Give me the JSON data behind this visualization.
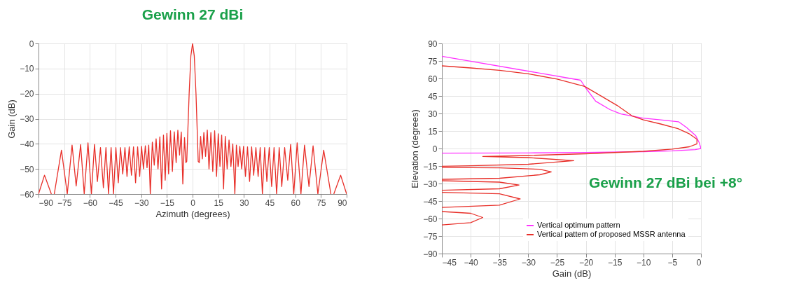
{
  "chart_data": [
    {
      "type": "line",
      "xlabel": "Azimuth (degrees)",
      "ylabel": "Gain (dB)",
      "xlim": [
        -90,
        90
      ],
      "ylim": [
        -60,
        0
      ],
      "xticks": [
        -90,
        -75,
        -60,
        -45,
        -30,
        -15,
        0,
        15,
        30,
        45,
        60,
        75,
        90
      ],
      "yticks": [
        -60,
        -50,
        -40,
        -30,
        -20,
        -10,
        0
      ],
      "grid": true,
      "legend": false,
      "color": "#e8302a",
      "annotations": [
        "Gewinn 27 dBi"
      ],
      "x": [
        -90,
        -86.5,
        -82.5,
        -81.6,
        -80.8,
        -76.6,
        -73.2,
        -70.4,
        -68.0,
        -65.4,
        -63.3,
        -61.1,
        -59.1,
        -57.3,
        -55.6,
        -53.8,
        -52.1,
        -50.6,
        -49.1,
        -47.6,
        -46.2,
        -44.8,
        -43.4,
        -42.1,
        -40.8,
        -39.5,
        -38.3,
        -37.0,
        -35.7,
        -34.5,
        -33.3,
        -32.1,
        -30.9,
        -29.8,
        -28.7,
        -27.6,
        -26.6,
        -25.6,
        -24.7,
        -23.5,
        -22.4,
        -21.3,
        -20.2,
        -19.1,
        -18.1,
        -17.0,
        -16.0,
        -15.0,
        -14.0,
        -12.9,
        -11.8,
        -10.7,
        -9.6,
        -8.6,
        -7.6,
        -6.6,
        -5.7,
        -4.7,
        -3.9,
        -3.4,
        -2,
        -1,
        0,
        1,
        2,
        3.3,
        3.9,
        4.7,
        5.7,
        6.6,
        7.6,
        8.6,
        9.6,
        10.7,
        11.8,
        12.9,
        14.0,
        15.0,
        16.0,
        17.0,
        18.1,
        19.1,
        20.2,
        21.3,
        22.4,
        23.5,
        24.7,
        25.6,
        26.6,
        27.6,
        28.7,
        29.8,
        30.9,
        32.1,
        33.3,
        34.5,
        35.7,
        37.0,
        38.3,
        39.5,
        40.8,
        42.1,
        43.4,
        44.8,
        46.2,
        47.6,
        49.1,
        50.6,
        52.1,
        53.8,
        55.6,
        57.3,
        59.1,
        61.1,
        63.3,
        65.4,
        68.0,
        70.4,
        73.2,
        76.6,
        80.8,
        81.6,
        82.5,
        86.5,
        90
      ],
      "values": [
        -60,
        -52.5,
        -60,
        null,
        -60,
        -42.5,
        -60,
        -40.5,
        -56.8,
        -40.3,
        -60,
        -39.6,
        -60,
        -40.2,
        -55,
        -41.5,
        -57.5,
        -41.5,
        -60,
        -41.5,
        -60,
        -41.5,
        -55.5,
        -41.5,
        -52,
        -41.5,
        -53,
        -41.2,
        -52.5,
        -41.2,
        -55.5,
        -41.2,
        -53,
        -41,
        -50,
        -40.8,
        -49.5,
        -40.5,
        -60,
        -39.3,
        -48.5,
        -38,
        -50,
        -37.2,
        -58,
        -36.5,
        -54.5,
        -35.8,
        -52,
        -34.8,
        -51,
        -35.2,
        -47.5,
        -34.6,
        -44.5,
        -35.3,
        -56,
        -37.5,
        -47.5,
        -47,
        -20,
        -5,
        0,
        -5,
        -20,
        -47,
        -47.5,
        -37,
        -46,
        -35.5,
        -45,
        -34.5,
        -50,
        -35.5,
        -51,
        -34.8,
        -53,
        -36,
        -49,
        -36.5,
        -58,
        -37,
        -50,
        -38.5,
        -49,
        -40,
        -60,
        -40.5,
        -49,
        -41,
        -50,
        -41,
        -53,
        -41.2,
        -55,
        -41.2,
        -52.5,
        -41.5,
        -53,
        -41.5,
        -60,
        -41.5,
        -55,
        -41.5,
        -57,
        -41.5,
        -60,
        -41.5,
        -57,
        -41.5,
        -54.5,
        -40.2,
        -60,
        -39.6,
        -60,
        -40.5,
        -57,
        -40.8,
        -60,
        -42.5,
        -60,
        null,
        -60,
        -52.5,
        -60
      ]
    },
    {
      "type": "line",
      "xlabel": "Gain (dB)",
      "ylabel": "Elevation (degrees)",
      "xlim": [
        -45,
        0
      ],
      "ylim": [
        -90,
        90
      ],
      "xticks": [
        -45,
        -40,
        -35,
        -30,
        -25,
        -20,
        -15,
        -10,
        -5,
        0
      ],
      "yticks": [
        -90,
        -75,
        -60,
        -45,
        -30,
        -15,
        0,
        15,
        30,
        45,
        60,
        75,
        90
      ],
      "grid": true,
      "legend": "bottom right",
      "annotations": [
        "Gewinn 27 dBi bei +8°"
      ],
      "series": [
        {
          "name": "Vertical optimum pattern",
          "color": "#ff33ff",
          "x": [
            -45,
            -20.9,
            -20.1,
            -18.3,
            -15.8,
            -13.9,
            -10.1,
            -7,
            -3.9,
            -2.5,
            -0.9,
            -0.3,
            0,
            -1,
            -5,
            -10,
            -20,
            -30,
            -45
          ],
          "values": [
            79,
            58.5,
            52.5,
            40.6,
            33.3,
            29.6,
            26,
            24.5,
            22.9,
            18,
            10.9,
            5,
            0,
            -1,
            -2,
            -2.7,
            -3.4,
            -3.8,
            -4
          ]
        },
        {
          "name": "Vertical pattem of proposed MSSR antenna",
          "color": "#e8302a",
          "x": [
            -45,
            -40,
            -35,
            -30,
            -25,
            -20.2,
            -17.7,
            -14.6,
            -12,
            -10,
            -7,
            -4,
            -2,
            -0.7,
            -0.7,
            -2,
            -5,
            -10,
            -20,
            -30,
            -37.9,
            -30,
            -22.1,
            -30,
            -40,
            -45,
            null,
            -45,
            -35,
            -28,
            -26,
            -28,
            -35,
            -45,
            null,
            -45,
            -35,
            -31.6,
            -35,
            -45,
            null,
            -45,
            -35,
            -31.4,
            -35,
            -45,
            null,
            -45,
            -40,
            -37.9,
            -40,
            -45
          ],
          "values": [
            70.8,
            69,
            67,
            64,
            59.5,
            53.2,
            46,
            37,
            28,
            24.5,
            21,
            17,
            12.5,
            8,
            4,
            1.5,
            -0.5,
            -2.4,
            -4.5,
            -6,
            -6.8,
            -7.8,
            -10.4,
            -13.5,
            -14.8,
            -15.2,
            null,
            -16.3,
            -16.6,
            -17.8,
            -20,
            -22.5,
            -25.5,
            -26.4,
            null,
            -27.6,
            -28.8,
            -31.3,
            -34.5,
            -35.8,
            null,
            -37.6,
            -38.8,
            -43.2,
            -48.5,
            -50.5,
            null,
            -54,
            -55.5,
            -59.1,
            -63.5,
            -65.5
          ]
        }
      ]
    }
  ]
}
